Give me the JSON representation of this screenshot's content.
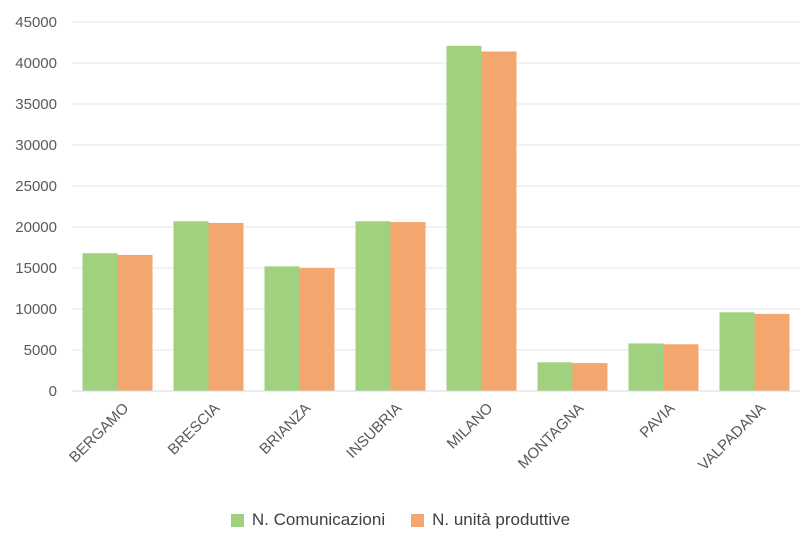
{
  "chart_data": {
    "type": "bar",
    "categories": [
      "BERGAMO",
      "BRESCIA",
      "BRIANZA",
      "INSUBRIA",
      "MILANO",
      "MONTAGNA",
      "PAVIA",
      "VALPADANA"
    ],
    "series": [
      {
        "name": "N. Comunicazioni",
        "color": "#9fd17f",
        "values": [
          16800,
          20700,
          15200,
          20700,
          42100,
          3500,
          5800,
          9600
        ]
      },
      {
        "name": "N. unità produttive",
        "color": "#f4a66f",
        "values": [
          16600,
          20500,
          15000,
          20600,
          41400,
          3400,
          5700,
          9400
        ]
      }
    ],
    "ylim": [
      0,
      45000
    ],
    "yticks": [
      0,
      5000,
      10000,
      15000,
      20000,
      25000,
      30000,
      35000,
      40000,
      45000
    ],
    "grid": true,
    "legend_position": "bottom"
  }
}
